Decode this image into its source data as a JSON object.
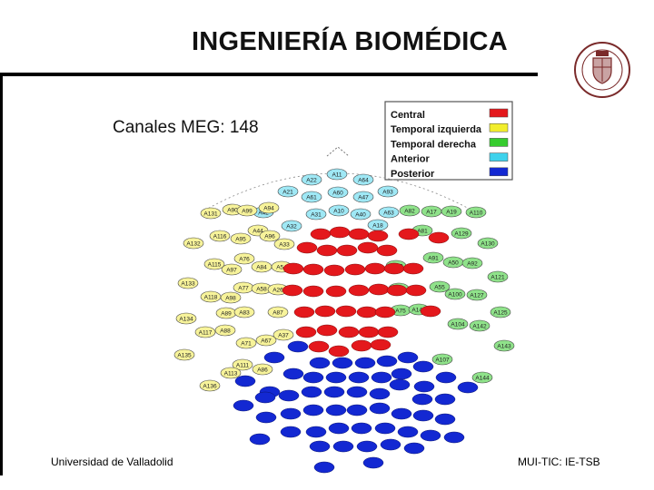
{
  "slide": {
    "title": "INGENIERÍA BIOMÉDICA",
    "footer_left": "Universidad de Valladolid",
    "footer_right": "MUI-TIC: IE-TSB"
  },
  "figure": {
    "heading": "Canales MEG: 148",
    "legend": [
      {
        "label": "Central",
        "color": "#e4181c"
      },
      {
        "label": "Temporal  izquierda",
        "color": "#f2ee2c"
      },
      {
        "label": "Temporal  derecha",
        "color": "#36cc2e"
      },
      {
        "label": "Anterior",
        "color": "#3ed2ec"
      },
      {
        "label": "Posterior",
        "color": "#1328d2"
      }
    ],
    "sensors": [
      {
        "label": "A22",
        "group": "Anterior"
      },
      {
        "label": "A11",
        "group": "Anterior"
      },
      {
        "label": "A64",
        "group": "Anterior"
      },
      {
        "label": "A21",
        "group": "Anterior"
      },
      {
        "label": "A61",
        "group": "Anterior"
      },
      {
        "label": "A60",
        "group": "Anterior"
      },
      {
        "label": "A47",
        "group": "Anterior"
      },
      {
        "label": "A93",
        "group": "Anterior"
      },
      {
        "label": "A42",
        "group": "Anterior"
      },
      {
        "label": "A31",
        "group": "Anterior"
      },
      {
        "label": "A10",
        "group": "Anterior"
      },
      {
        "label": "A40",
        "group": "Anterior"
      },
      {
        "label": "A63",
        "group": "Anterior"
      },
      {
        "label": "A32",
        "group": "Anterior"
      },
      {
        "label": "A18",
        "group": "Anterior"
      },
      {
        "label": "A131",
        "group": "Temporal  izquierda"
      },
      {
        "label": "A90",
        "group": "Temporal  izquierda"
      },
      {
        "label": "A99",
        "group": "Temporal  izquierda"
      },
      {
        "label": "A94",
        "group": "Temporal  izquierda"
      },
      {
        "label": "A116",
        "group": "Temporal  izquierda"
      },
      {
        "label": "A95",
        "group": "Temporal  izquierda"
      },
      {
        "label": "A44",
        "group": "Temporal  izquierda"
      },
      {
        "label": "A96",
        "group": "Temporal  izquierda"
      },
      {
        "label": "A132",
        "group": "Temporal  izquierda"
      },
      {
        "label": "A33",
        "group": "Temporal  izquierda"
      },
      {
        "label": "A115",
        "group": "Temporal  izquierda"
      },
      {
        "label": "A76",
        "group": "Temporal  izquierda"
      },
      {
        "label": "A97",
        "group": "Temporal  izquierda"
      },
      {
        "label": "A84",
        "group": "Temporal  izquierda"
      },
      {
        "label": "A54",
        "group": "Temporal  izquierda"
      },
      {
        "label": "A133",
        "group": "Temporal  izquierda"
      },
      {
        "label": "A77",
        "group": "Temporal  izquierda"
      },
      {
        "label": "A58",
        "group": "Temporal  izquierda"
      },
      {
        "label": "A26",
        "group": "Temporal  izquierda"
      },
      {
        "label": "A118",
        "group": "Temporal  izquierda"
      },
      {
        "label": "A98",
        "group": "Temporal  izquierda"
      },
      {
        "label": "A134",
        "group": "Temporal  izquierda"
      },
      {
        "label": "A89",
        "group": "Temporal  izquierda"
      },
      {
        "label": "A83",
        "group": "Temporal  izquierda"
      },
      {
        "label": "A87",
        "group": "Temporal  izquierda"
      },
      {
        "label": "A117",
        "group": "Temporal  izquierda"
      },
      {
        "label": "A88",
        "group": "Temporal  izquierda"
      },
      {
        "label": "A71",
        "group": "Temporal  izquierda"
      },
      {
        "label": "A67",
        "group": "Temporal  izquierda"
      },
      {
        "label": "A37",
        "group": "Temporal  izquierda"
      },
      {
        "label": "A135",
        "group": "Temporal  izquierda"
      },
      {
        "label": "A111",
        "group": "Temporal  izquierda"
      },
      {
        "label": "A113",
        "group": "Temporal  izquierda"
      },
      {
        "label": "A86",
        "group": "Temporal  izquierda"
      },
      {
        "label": "A136",
        "group": "Temporal  izquierda"
      },
      {
        "label": "A82",
        "group": "Temporal  derecha"
      },
      {
        "label": "A17",
        "group": "Temporal  derecha"
      },
      {
        "label": "A19",
        "group": "Temporal  derecha"
      },
      {
        "label": "A110",
        "group": "Temporal  derecha"
      },
      {
        "label": "A81",
        "group": "Temporal  derecha"
      },
      {
        "label": "A129",
        "group": "Temporal  derecha"
      },
      {
        "label": "A130",
        "group": "Temporal  derecha"
      },
      {
        "label": "A91",
        "group": "Temporal  derecha"
      },
      {
        "label": "A50",
        "group": "Temporal  derecha"
      },
      {
        "label": "A92",
        "group": "Temporal  derecha"
      },
      {
        "label": "A121",
        "group": "Temporal  derecha"
      },
      {
        "label": "A140",
        "group": "Temporal  derecha"
      },
      {
        "label": "A52",
        "group": "Temporal  derecha"
      },
      {
        "label": "A55",
        "group": "Temporal  derecha"
      },
      {
        "label": "A100",
        "group": "Temporal  derecha"
      },
      {
        "label": "A127",
        "group": "Temporal  derecha"
      },
      {
        "label": "A75",
        "group": "Temporal  derecha"
      },
      {
        "label": "A141",
        "group": "Temporal  derecha"
      },
      {
        "label": "A125",
        "group": "Temporal  derecha"
      },
      {
        "label": "A104",
        "group": "Temporal  derecha"
      },
      {
        "label": "A142",
        "group": "Temporal  derecha"
      },
      {
        "label": "A107",
        "group": "Temporal  derecha"
      },
      {
        "label": "A143",
        "group": "Temporal  derecha"
      },
      {
        "label": "A144",
        "group": "Temporal  derecha"
      }
    ]
  }
}
